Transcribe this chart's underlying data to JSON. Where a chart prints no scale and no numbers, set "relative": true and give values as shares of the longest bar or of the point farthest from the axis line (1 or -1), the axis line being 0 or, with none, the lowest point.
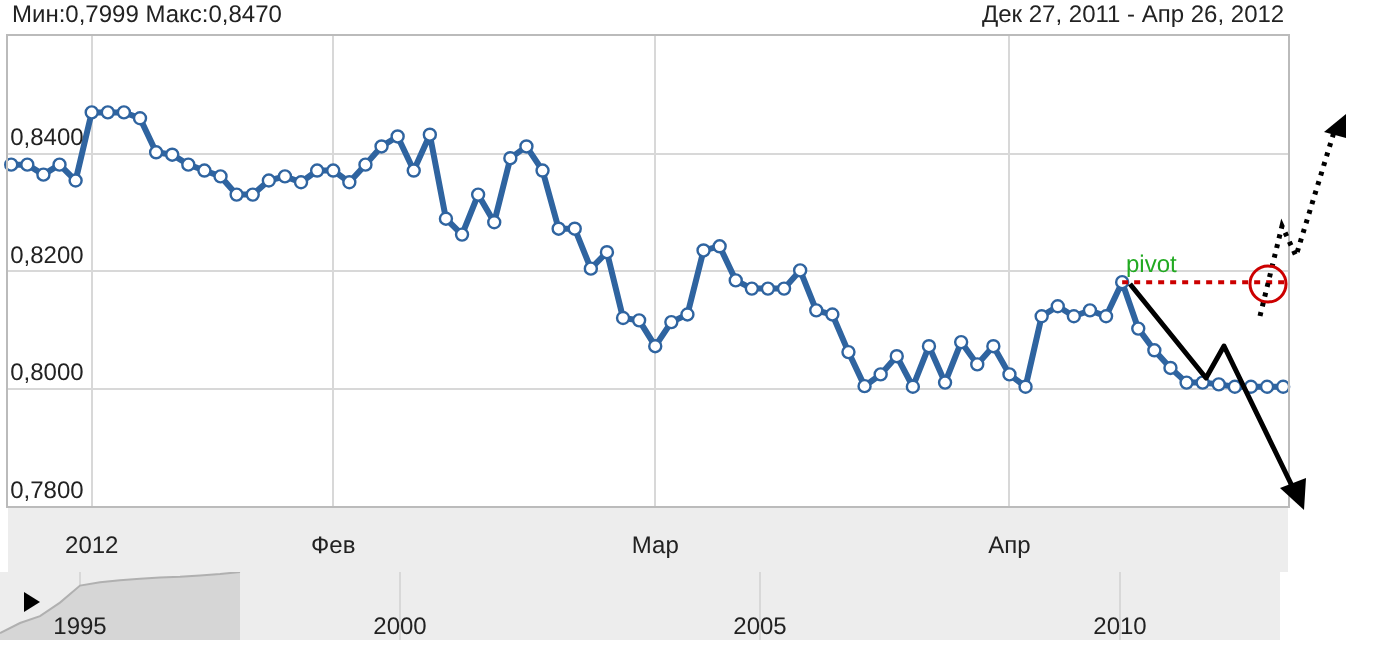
{
  "chart_data": [
    {
      "type": "line",
      "annotations": [
        "Мин:0,7999 Макс:0,8470",
        "Дек 27, 2011 - Апр 26, 2012"
      ],
      "categories": [
        null,
        null,
        null,
        null,
        null,
        "2012",
        null,
        null,
        null,
        null,
        null,
        null,
        null,
        null,
        null,
        null,
        null,
        null,
        null,
        null,
        "Фев",
        null,
        null,
        null,
        null,
        null,
        null,
        null,
        null,
        null,
        null,
        null,
        null,
        null,
        null,
        null,
        null,
        null,
        null,
        null,
        "Мар",
        null,
        null,
        null,
        null,
        null,
        null,
        null,
        null,
        null,
        null,
        null,
        null,
        null,
        null,
        null,
        null,
        null,
        null,
        null,
        null,
        null,
        "Апр",
        null,
        null,
        null,
        null,
        null,
        null,
        null,
        null,
        null,
        null,
        null,
        null,
        null,
        null,
        null,
        null,
        null
      ],
      "series": [
        {
          "color": "#2f64a0",
          "values": [
            0.8381,
            0.8381,
            0.8364,
            0.8381,
            0.8354,
            0.847,
            0.847,
            0.847,
            0.846,
            0.8402,
            0.8398,
            0.8381,
            0.8371,
            0.8361,
            0.833,
            0.833,
            0.8354,
            0.8361,
            0.8351,
            0.8371,
            0.8371,
            0.8351,
            0.8381,
            0.8412,
            0.8429,
            0.8371,
            0.8432,
            0.8289,
            0.8262,
            0.833,
            0.8283,
            0.8392,
            0.8412,
            0.8371,
            0.8272,
            0.8272,
            0.8204,
            0.8232,
            0.812,
            0.8116,
            0.8072,
            0.8113,
            0.8126,
            0.8235,
            0.8242,
            0.8184,
            0.817,
            0.817,
            0.817,
            0.8201,
            0.8133,
            0.8126,
            0.8062,
            0.8004,
            0.8024,
            0.8055,
            0.8003,
            0.8072,
            0.801,
            0.8079,
            0.8041,
            0.8072,
            0.8024,
            0.8003,
            0.8123,
            0.814,
            0.8123,
            0.8133,
            0.8123,
            0.8181,
            0.8102,
            0.8065,
            0.8035,
            0.801,
            0.801,
            0.8007,
            0.8003,
            0.8003,
            0.8003,
            0.8003
          ]
        }
      ],
      "ylim": [
        0.78,
        0.86
      ],
      "yticks": [
        {
          "value": 0.78,
          "label": "0,7800"
        },
        {
          "value": 0.8,
          "label": "0,8000"
        },
        {
          "value": 0.82,
          "label": "0,8200"
        },
        {
          "value": 0.84,
          "label": "0,8400"
        }
      ],
      "ref_lines": [
        {
          "axis": "y",
          "value": 0.8181,
          "label": "pivot",
          "color": "#cc0000",
          "line_style": "dotted"
        }
      ],
      "grid": true,
      "marker": "circle",
      "line_style": "solid"
    },
    {
      "type": "area",
      "relative": true,
      "categories": [
        null,
        null,
        null,
        null,
        "1995",
        null,
        null,
        null,
        null,
        null,
        null,
        null,
        null,
        null,
        null,
        null,
        null,
        null,
        null,
        null,
        "2000",
        null,
        null,
        null,
        null,
        null,
        null,
        null,
        null,
        null,
        null,
        null,
        null,
        null,
        null,
        null,
        null,
        null,
        "2005",
        null,
        null,
        null,
        null,
        null,
        null,
        null,
        null,
        null,
        null,
        null,
        null,
        null,
        null,
        null,
        null,
        null,
        "2010",
        null,
        null,
        null,
        null,
        null,
        null,
        null,
        null
      ],
      "series": [
        {
          "color": "#d6d6d6",
          "values": [
            0.1,
            0.25,
            0.35,
            0.55,
            0.8,
            0.85,
            0.88,
            0.9,
            0.92,
            0.93,
            0.95,
            0.97,
            1,
            null,
            null,
            null,
            null,
            null,
            null,
            null,
            null,
            null,
            null,
            null,
            null,
            null,
            null,
            null,
            null,
            null,
            null,
            null,
            null,
            null,
            null,
            null,
            null,
            null,
            null,
            null,
            null,
            null,
            null,
            null,
            null,
            null,
            null,
            null,
            null,
            null,
            null,
            null,
            null,
            null,
            null,
            null,
            null,
            null,
            null,
            null,
            null,
            null,
            null,
            null,
            null
          ]
        }
      ],
      "grid": "x"
    }
  ]
}
